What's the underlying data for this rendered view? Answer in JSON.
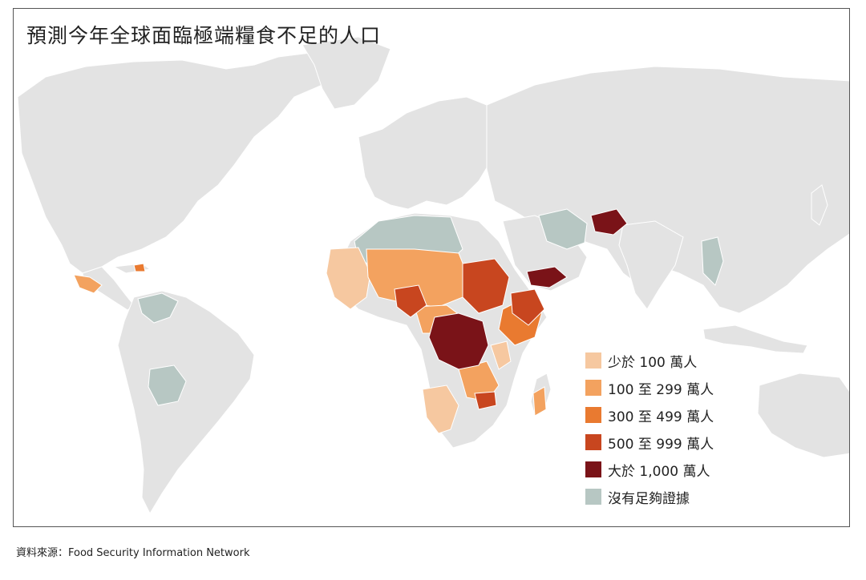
{
  "title": "預測今年全球面臨極端糧食不足的人口",
  "source": "資料來源：Food Security Information Network",
  "colors": {
    "land": "#e3e3e3",
    "no_data": "#b7c7c3",
    "lt_100": "#f6c8a0",
    "r100_299": "#f3a25f",
    "r300_499": "#e97a30",
    "r500_999": "#c8461f",
    "gt_1000": "#7a1318"
  },
  "legend": [
    {
      "label": "少於 100 萬人",
      "color": "#f6c8a0"
    },
    {
      "label": "100 至 299 萬人",
      "color": "#f3a25f"
    },
    {
      "label": "300 至 499 萬人",
      "color": "#e97a30"
    },
    {
      "label": "500 至 999 萬人",
      "color": "#c8461f"
    },
    {
      "label": "大於 1,000 萬人",
      "color": "#7a1318"
    },
    {
      "label": "沒有足夠證據",
      "color": "#b7c7c3"
    }
  ]
}
